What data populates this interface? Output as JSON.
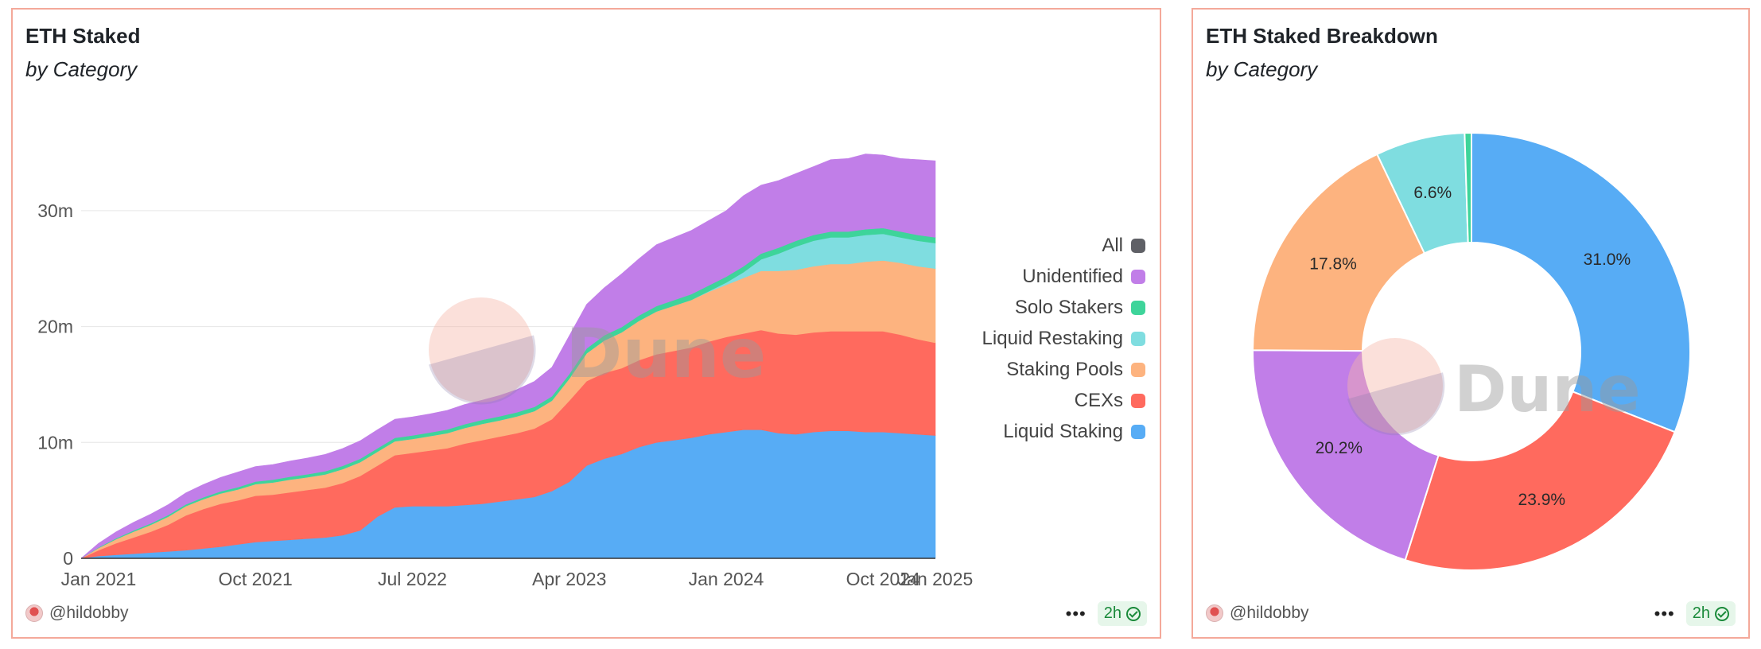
{
  "left": {
    "title": "ETH Staked",
    "subtitle": "by Category",
    "author": "@hildobby",
    "freshness": "2h",
    "watermark": "Dune"
  },
  "right": {
    "title": "ETH Staked Breakdown",
    "subtitle": "by Category",
    "author": "@hildobby",
    "freshness": "2h",
    "watermark": "Dune"
  },
  "legend": [
    {
      "label": "All",
      "color": "#5f6066"
    },
    {
      "label": "Unidentified",
      "color": "#c17ee8"
    },
    {
      "label": "Solo Stakers",
      "color": "#3ed49a"
    },
    {
      "label": "Liquid Restaking",
      "color": "#7fdde0"
    },
    {
      "label": "Staking Pools",
      "color": "#fdb37f"
    },
    {
      "label": "CEXs",
      "color": "#ff6a5e"
    },
    {
      "label": "Liquid Staking",
      "color": "#57acf5"
    }
  ],
  "chart_data": [
    {
      "type": "area",
      "stacked": true,
      "x": [
        "2020-12",
        "2021-01",
        "2021-02",
        "2021-03",
        "2021-04",
        "2021-05",
        "2021-06",
        "2021-07",
        "2021-08",
        "2021-09",
        "2021-10",
        "2021-11",
        "2021-12",
        "2022-01",
        "2022-02",
        "2022-03",
        "2022-04",
        "2022-05",
        "2022-06",
        "2022-07",
        "2022-08",
        "2022-09",
        "2022-10",
        "2022-11",
        "2022-12",
        "2023-01",
        "2023-02",
        "2023-03",
        "2023-04",
        "2023-05",
        "2023-06",
        "2023-07",
        "2023-08",
        "2023-09",
        "2023-10",
        "2023-11",
        "2023-12",
        "2024-01",
        "2024-02",
        "2024-03",
        "2024-04",
        "2024-05",
        "2024-06",
        "2024-07",
        "2024-08",
        "2024-09",
        "2024-10",
        "2024-11",
        "2024-12",
        "2025-01"
      ],
      "x_ticks": [
        "Jan 2021",
        "Oct 2021",
        "Jul 2022",
        "Apr 2023",
        "Jan 2024",
        "Oct 2024",
        "Jan 2025"
      ],
      "y_ticks": [
        "0",
        "10m",
        "20m",
        "30m"
      ],
      "ylim": [
        0,
        35000000
      ],
      "grid": "horizontal",
      "legend_position": "right",
      "series": [
        {
          "name": "Liquid Staking",
          "color": "#57acf5",
          "values": [
            0.0,
            0.2,
            0.3,
            0.4,
            0.5,
            0.6,
            0.7,
            0.85,
            1.0,
            1.2,
            1.4,
            1.5,
            1.6,
            1.7,
            1.8,
            2.0,
            2.4,
            3.6,
            4.4,
            4.5,
            4.5,
            4.5,
            4.6,
            4.7,
            4.9,
            5.1,
            5.3,
            5.8,
            6.6,
            8.0,
            8.6,
            9.0,
            9.6,
            10.0,
            10.2,
            10.4,
            10.7,
            10.9,
            11.1,
            11.1,
            10.8,
            10.7,
            10.9,
            11.0,
            11.0,
            10.9,
            10.9,
            10.8,
            10.7,
            10.6
          ]
        },
        {
          "name": "CEXs",
          "color": "#ff6a5e",
          "values": [
            0.0,
            0.5,
            1.0,
            1.4,
            1.8,
            2.3,
            3.0,
            3.4,
            3.7,
            3.8,
            4.0,
            4.0,
            4.1,
            4.2,
            4.3,
            4.5,
            4.7,
            4.4,
            4.5,
            4.6,
            4.8,
            5.0,
            5.3,
            5.5,
            5.6,
            5.7,
            5.9,
            6.2,
            7.0,
            7.3,
            7.4,
            7.4,
            7.5,
            7.6,
            7.7,
            7.8,
            8.0,
            8.2,
            8.3,
            8.6,
            8.6,
            8.6,
            8.6,
            8.6,
            8.6,
            8.7,
            8.7,
            8.5,
            8.2,
            8.0
          ]
        },
        {
          "name": "Staking Pools",
          "color": "#fdb37f",
          "values": [
            0.0,
            0.2,
            0.35,
            0.5,
            0.6,
            0.7,
            0.8,
            0.85,
            0.9,
            0.95,
            1.0,
            1.05,
            1.1,
            1.1,
            1.15,
            1.2,
            1.2,
            1.2,
            1.2,
            1.2,
            1.25,
            1.3,
            1.35,
            1.4,
            1.4,
            1.45,
            1.5,
            1.6,
            1.9,
            2.4,
            2.8,
            3.1,
            3.4,
            3.7,
            3.9,
            4.1,
            4.3,
            4.5,
            4.8,
            5.1,
            5.4,
            5.6,
            5.7,
            5.8,
            5.8,
            6.0,
            6.1,
            6.2,
            6.3,
            6.4
          ]
        },
        {
          "name": "Liquid Restaking",
          "color": "#7fdde0",
          "values": [
            0,
            0,
            0,
            0,
            0,
            0,
            0,
            0,
            0,
            0,
            0,
            0,
            0,
            0,
            0,
            0,
            0,
            0,
            0,
            0,
            0,
            0,
            0,
            0,
            0,
            0,
            0,
            0,
            0,
            0,
            0,
            0,
            0,
            0,
            0,
            0,
            0.05,
            0.2,
            0.5,
            1.0,
            1.5,
            2.0,
            2.2,
            2.3,
            2.3,
            2.3,
            2.3,
            2.2,
            2.2,
            2.2
          ]
        },
        {
          "name": "Solo Stakers",
          "color": "#3ed49a",
          "values": [
            0.0,
            0.05,
            0.08,
            0.1,
            0.12,
            0.14,
            0.15,
            0.16,
            0.18,
            0.2,
            0.22,
            0.24,
            0.25,
            0.26,
            0.27,
            0.28,
            0.29,
            0.3,
            0.3,
            0.3,
            0.31,
            0.32,
            0.33,
            0.34,
            0.35,
            0.36,
            0.37,
            0.38,
            0.4,
            0.42,
            0.44,
            0.45,
            0.46,
            0.47,
            0.48,
            0.49,
            0.5,
            0.5,
            0.5,
            0.5,
            0.5,
            0.5,
            0.5,
            0.5,
            0.5,
            0.5,
            0.5,
            0.5,
            0.5,
            0.5
          ]
        },
        {
          "name": "Unidentified",
          "color": "#c17ee8",
          "values": [
            0.0,
            0.35,
            0.55,
            0.7,
            0.8,
            0.9,
            1.0,
            1.1,
            1.2,
            1.3,
            1.3,
            1.3,
            1.35,
            1.4,
            1.45,
            1.5,
            1.55,
            1.6,
            1.6,
            1.6,
            1.6,
            1.65,
            1.7,
            1.7,
            1.8,
            1.95,
            2.2,
            2.5,
            3.3,
            3.8,
            4.1,
            4.6,
            4.9,
            5.3,
            5.4,
            5.5,
            5.6,
            5.7,
            6.1,
            5.9,
            5.8,
            5.8,
            5.9,
            6.2,
            6.3,
            6.5,
            6.3,
            6.3,
            6.5,
            6.6
          ]
        }
      ]
    },
    {
      "type": "pie",
      "donut": true,
      "slices": [
        {
          "name": "Liquid Staking",
          "value": 31.0,
          "label": "31.0%",
          "color": "#57acf5"
        },
        {
          "name": "CEXs",
          "value": 23.9,
          "label": "23.9%",
          "color": "#ff6a5e"
        },
        {
          "name": "Unidentified",
          "value": 20.2,
          "label": "20.2%",
          "color": "#c17ee8"
        },
        {
          "name": "Staking Pools",
          "value": 17.8,
          "label": "17.8%",
          "color": "#fdb37f"
        },
        {
          "name": "Liquid Restaking",
          "value": 6.6,
          "label": "6.6%",
          "color": "#7fdde0"
        },
        {
          "name": "Solo Stakers",
          "value": 0.5,
          "label": "",
          "color": "#3ed49a"
        }
      ]
    }
  ]
}
